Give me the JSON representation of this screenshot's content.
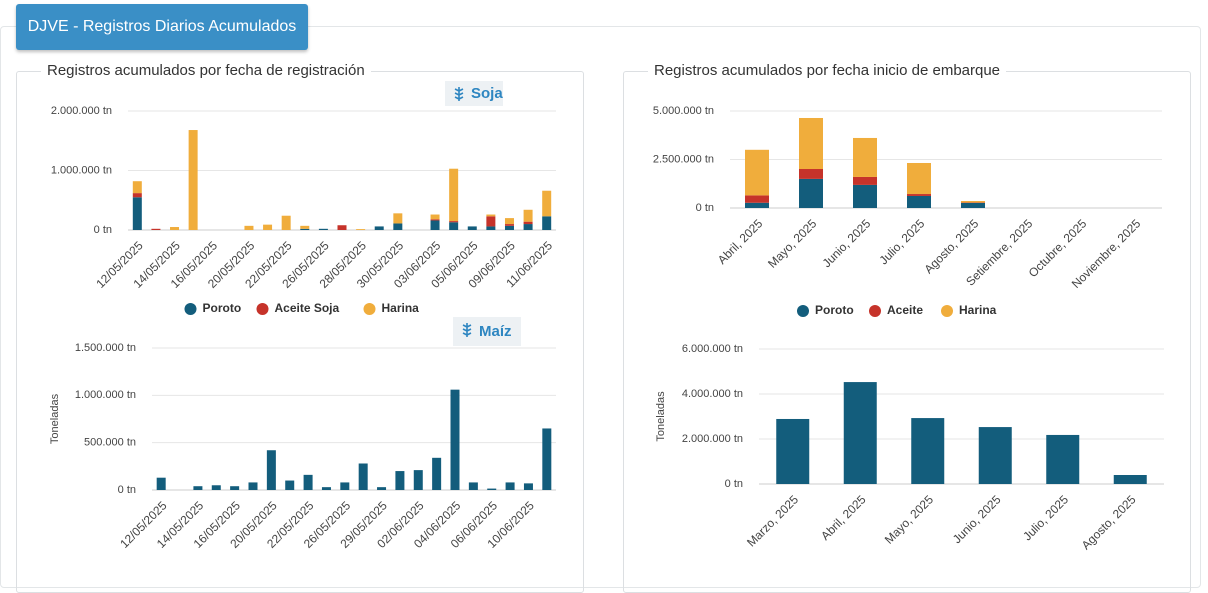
{
  "header": {
    "title": "DJVE - Registros Diarios Acumulados"
  },
  "panels": [
    {
      "title": "Registros acumulados por fecha de registración"
    },
    {
      "title": "Registros acumulados por fecha inicio de embarque"
    }
  ],
  "tags": [
    "Soja",
    "Maíz"
  ],
  "chart_data": [
    {
      "type": "bar",
      "stacked": true,
      "categories": [
        "12/05/2025",
        null,
        "14/05/2025",
        null,
        "16/05/2025",
        null,
        "20/05/2025",
        null,
        "22/05/2025",
        null,
        "26/05/2025",
        null,
        "28/05/2025",
        null,
        "30/05/2025",
        null,
        "03/06/2025",
        null,
        "05/06/2025",
        null,
        "09/06/2025",
        null,
        "11/06/2025"
      ],
      "series": [
        {
          "name": "Poroto",
          "color": "#135d7c",
          "values": [
            550000,
            0,
            0,
            0,
            0,
            0,
            0,
            0,
            0,
            20000,
            20000,
            0,
            0,
            60000,
            110000,
            0,
            160000,
            130000,
            60000,
            60000,
            70000,
            100000,
            230000
          ]
        },
        {
          "name": "Aceite Soja",
          "color": "#c6332a",
          "values": [
            70000,
            20000,
            0,
            0,
            0,
            0,
            0,
            0,
            0,
            0,
            0,
            80000,
            0,
            0,
            0,
            0,
            20000,
            20000,
            0,
            170000,
            30000,
            40000,
            0
          ]
        },
        {
          "name": "Harina",
          "color": "#f0ad3c",
          "values": [
            200000,
            0,
            50000,
            1680000,
            0,
            0,
            70000,
            90000,
            240000,
            50000,
            0,
            0,
            15000,
            0,
            170000,
            0,
            80000,
            880000,
            0,
            30000,
            100000,
            200000,
            430000
          ]
        }
      ],
      "ylim": [
        0,
        2000000
      ],
      "yticks": [
        {
          "value": 0,
          "label": "0 tn"
        },
        {
          "value": 1000000,
          "label": "1.000.000 tn"
        },
        {
          "value": 2000000,
          "label": "2.000.000 tn"
        }
      ],
      "grid": true,
      "legend": "bottom"
    },
    {
      "type": "bar",
      "y_label": "Toneladas",
      "color": "#135d7c",
      "categories": [
        "12/05/2025",
        null,
        "14/05/2025",
        null,
        "16/05/2025",
        null,
        "20/05/2025",
        null,
        "22/05/2025",
        null,
        "26/05/2025",
        null,
        "29/05/2025",
        null,
        "02/06/2025",
        null,
        "04/06/2025",
        null,
        "06/06/2025",
        null,
        "10/06/2025",
        null
      ],
      "values": [
        130000,
        0,
        40000,
        50000,
        40000,
        80000,
        420000,
        100000,
        160000,
        30000,
        80000,
        280000,
        30000,
        200000,
        210000,
        340000,
        1060000,
        80000,
        15000,
        80000,
        70000,
        650000
      ],
      "ylim": [
        0,
        1500000
      ],
      "yticks": [
        {
          "value": 0,
          "label": "0 tn"
        },
        {
          "value": 500000,
          "label": "500.000 tn"
        },
        {
          "value": 1000000,
          "label": "1.000.000 tn"
        },
        {
          "value": 1500000,
          "label": "1.500.000 tn"
        }
      ],
      "grid": true
    },
    {
      "type": "bar",
      "stacked": true,
      "categories": [
        "Abril, 2025",
        "Mayo, 2025",
        "Junio, 2025",
        "Julio, 2025",
        "Agosto, 2025",
        "Setiembre, 2025",
        "Octubre, 2025",
        "Noviembre, 2025"
      ],
      "series": [
        {
          "name": "Poroto",
          "color": "#135d7c",
          "values": [
            270000,
            1500000,
            1190000,
            620000,
            260000,
            0,
            0,
            0
          ]
        },
        {
          "name": "Aceite",
          "color": "#c6332a",
          "values": [
            380000,
            510000,
            410000,
            100000,
            20000,
            0,
            0,
            0
          ]
        },
        {
          "name": "Harina",
          "color": "#f0ad3c",
          "values": [
            2350000,
            2630000,
            2010000,
            1600000,
            80000,
            0,
            0,
            0
          ]
        }
      ],
      "ylim": [
        0,
        5000000
      ],
      "yticks": [
        {
          "value": 0,
          "label": "0 tn"
        },
        {
          "value": 2500000,
          "label": "2.500.000 tn"
        },
        {
          "value": 5000000,
          "label": "5.000.000 tn"
        }
      ],
      "grid": true,
      "legend": "bottom"
    },
    {
      "type": "bar",
      "y_label": "Toneladas",
      "color": "#135d7c",
      "categories": [
        "Marzo, 2025",
        "Abril, 2025",
        "Mayo, 2025",
        "Junio, 2025",
        "Julio, 2025",
        "Agosto, 2025"
      ],
      "values": [
        2890000,
        4530000,
        2930000,
        2530000,
        2180000,
        400000
      ],
      "ylim": [
        0,
        6000000
      ],
      "yticks": [
        {
          "value": 0,
          "label": "0 tn"
        },
        {
          "value": 2000000,
          "label": "2.000.000 tn"
        },
        {
          "value": 4000000,
          "label": "4.000.000 tn"
        },
        {
          "value": 6000000,
          "label": "6.000.000 tn"
        }
      ],
      "grid": true
    }
  ]
}
